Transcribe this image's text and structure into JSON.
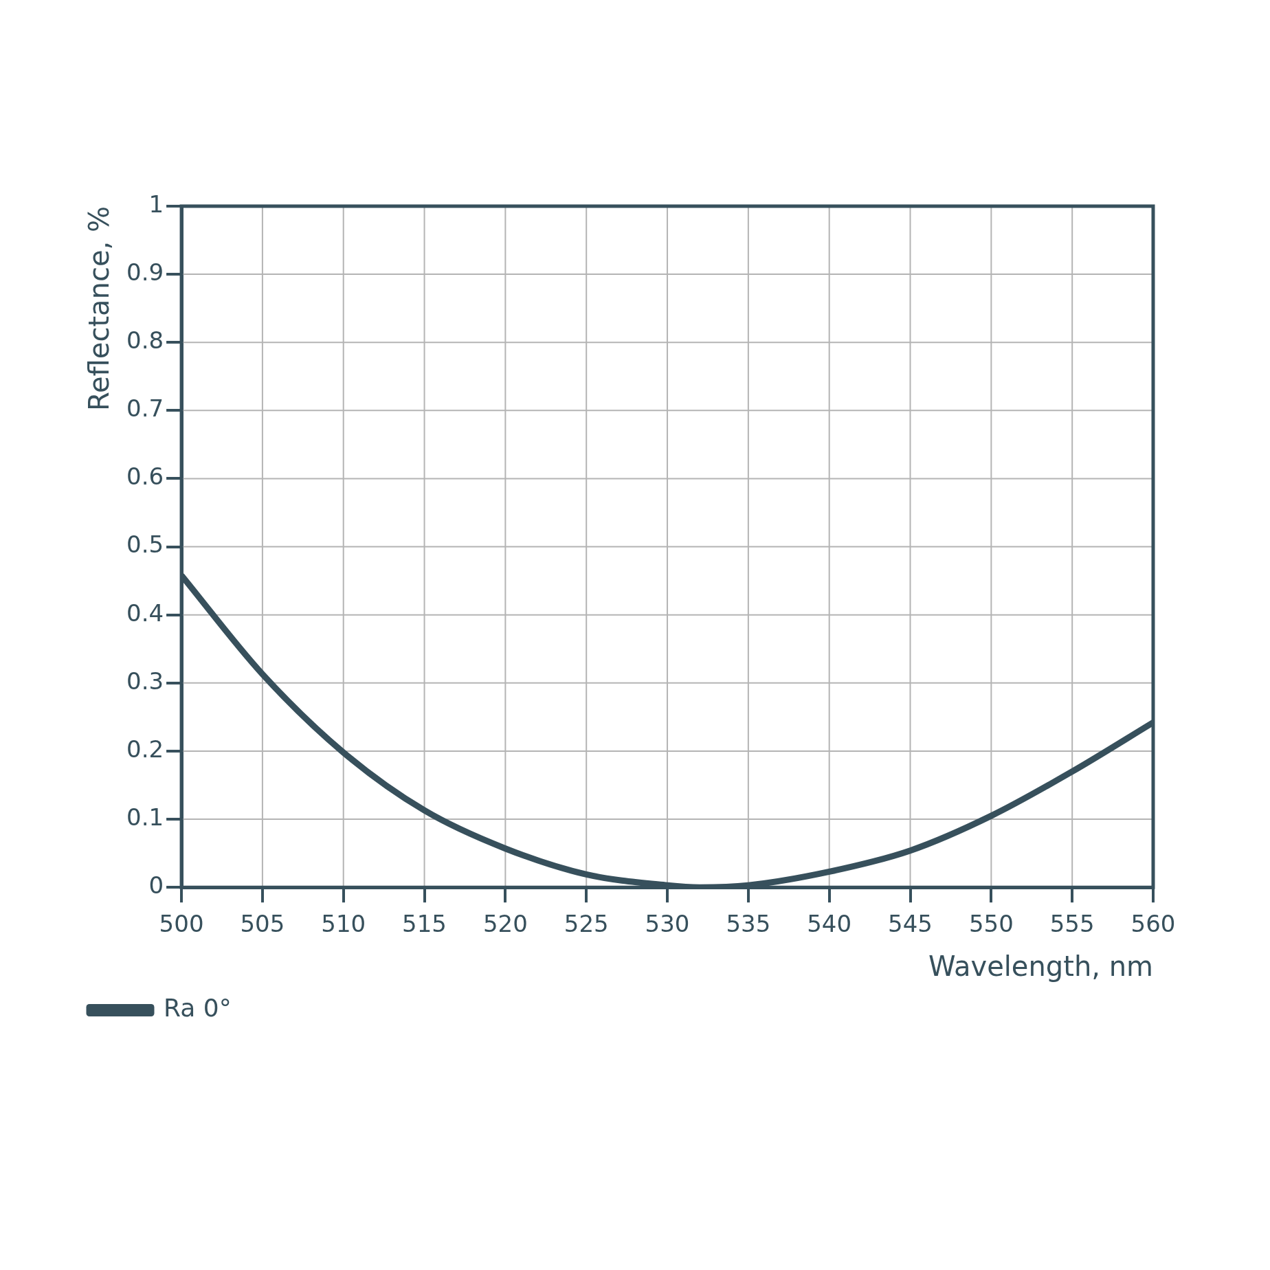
{
  "chart_data": {
    "type": "line",
    "xlabel": "Wavelength, nm",
    "ylabel": "Reflectance, %",
    "legend": "bottom left",
    "grid": true,
    "marker": "none",
    "line_style": "solid",
    "xlim": [
      500,
      560
    ],
    "ylim": [
      0,
      1
    ],
    "xticks": [
      500,
      505,
      510,
      515,
      520,
      525,
      530,
      535,
      540,
      545,
      550,
      555,
      560
    ],
    "yticks": [
      0,
      0.1,
      0.2,
      0.3,
      0.4,
      0.5,
      0.6,
      0.7,
      0.8,
      0.9,
      1
    ],
    "x": [
      500,
      505,
      510,
      515,
      520,
      525,
      530,
      532,
      535,
      540,
      545,
      550,
      555,
      560
    ],
    "series": [
      {
        "name": "Ra 0°",
        "color": "#37505c",
        "values": [
          0.458,
          0.313,
          0.198,
          0.113,
          0.057,
          0.019,
          0.003,
          0.0,
          0.003,
          0.023,
          0.054,
          0.105,
          0.17,
          0.242
        ]
      }
    ]
  }
}
